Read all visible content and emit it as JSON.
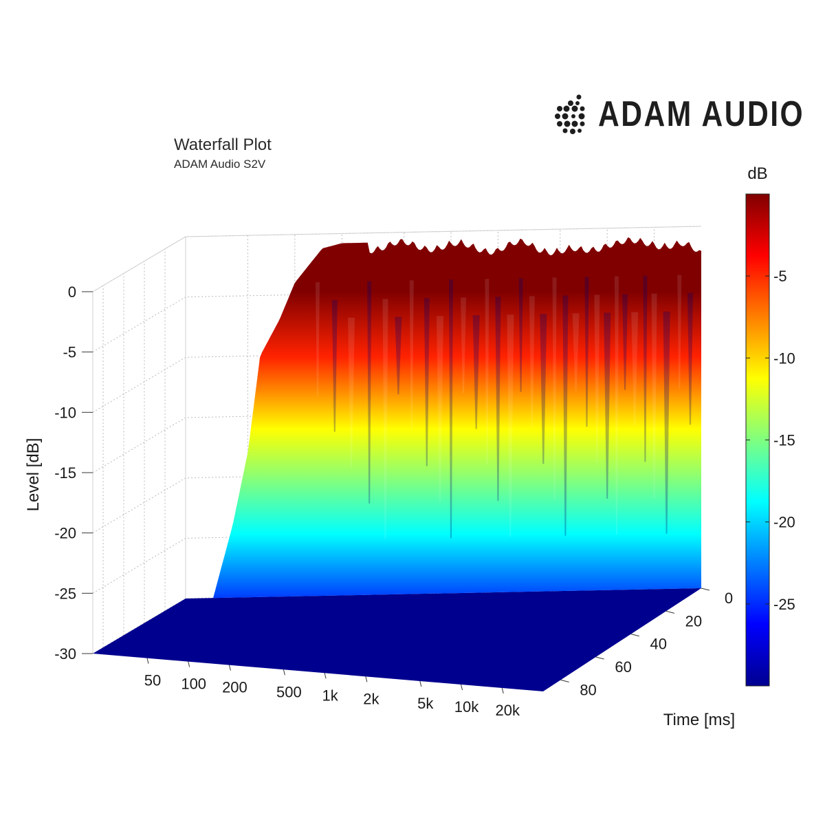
{
  "header": {
    "title": "Waterfall Plot",
    "subtitle": "ADAM Audio S2V",
    "brand_name": "ADAM AUDIO"
  },
  "chart_data": {
    "type": "waterfall",
    "title": "Waterfall Plot",
    "subtitle": "ADAM Audio S2V",
    "zlabel": "Level [dB]",
    "ylabel": "Time [ms]",
    "xlabel": "",
    "x_scale": "log",
    "xlim": [
      20,
      40000
    ],
    "ylim_ms": [
      0,
      90
    ],
    "zlim": [
      -30,
      0
    ],
    "x_ticks": [
      {
        "v": 50,
        "label": "50"
      },
      {
        "v": 100,
        "label": "100"
      },
      {
        "v": 200,
        "label": "200"
      },
      {
        "v": 500,
        "label": "500"
      },
      {
        "v": 1000,
        "label": "1k"
      },
      {
        "v": 2000,
        "label": "2k"
      },
      {
        "v": 5000,
        "label": "5k"
      },
      {
        "v": 10000,
        "label": "10k"
      },
      {
        "v": 20000,
        "label": "20k"
      }
    ],
    "time_ticks": [
      {
        "v": 0,
        "label": "0"
      },
      {
        "v": 20,
        "label": "20"
      },
      {
        "v": 40,
        "label": "40"
      },
      {
        "v": 60,
        "label": "60"
      },
      {
        "v": 80,
        "label": "80"
      }
    ],
    "z_ticks": [
      {
        "v": 0,
        "label": "0"
      },
      {
        "v": -5,
        "label": "-5"
      },
      {
        "v": -10,
        "label": "-10"
      },
      {
        "v": -15,
        "label": "-15"
      },
      {
        "v": -20,
        "label": "-20"
      },
      {
        "v": -25,
        "label": "-25"
      },
      {
        "v": -30,
        "label": "-30"
      }
    ],
    "colorbar": {
      "label": "dB",
      "range": [
        -30,
        0
      ],
      "ticks": [
        {
          "v": -5,
          "label": "-5"
        },
        {
          "v": -10,
          "label": "-10"
        },
        {
          "v": -15,
          "label": "-15"
        },
        {
          "v": -20,
          "label": "-20"
        },
        {
          "v": -25,
          "label": "-25"
        }
      ],
      "colormap": "jet"
    },
    "initial_response": {
      "freq_hz": [
        20,
        30,
        40,
        50,
        60,
        80,
        100,
        150,
        200,
        300,
        500,
        700,
        1000,
        1500,
        2000,
        3000,
        5000,
        7000,
        10000,
        15000,
        20000,
        30000,
        40000
      ],
      "level_db": [
        -30,
        -30,
        -24,
        -18,
        -10,
        -7,
        -4,
        -1.2,
        -0.8,
        -0.8,
        -0.7,
        -0.8,
        -0.9,
        -1,
        -1.2,
        -0.8,
        -1.5,
        -1.6,
        -0.8,
        -1,
        -0.9,
        -1.2,
        -2
      ]
    },
    "grid": true
  }
}
